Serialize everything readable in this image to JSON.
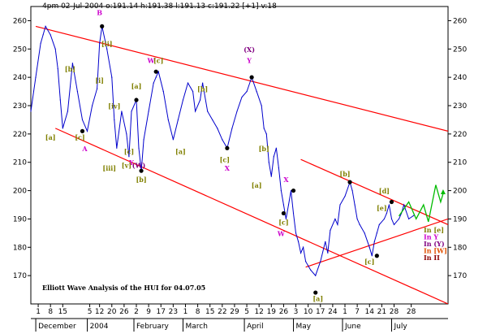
{
  "header": "4pm 02-Jul-2004  o:191.14 h:191.38 l:191.13 c:191.22 [+1] v:18",
  "colors": {
    "price": "#0000cc",
    "trend": "#ff0000",
    "green": "#00bb00",
    "pivot": "#000000",
    "olive": "#808000",
    "magenta": "#cc00cc",
    "purple": "#800080",
    "orange": "#e05000",
    "darkred": "#8b0000"
  },
  "chart_data": {
    "type": "line",
    "title": "Elliott Wave Analysis of the HUI for 04.07.05",
    "ylim": [
      160,
      265
    ],
    "yticks": [
      170,
      180,
      190,
      200,
      210,
      220,
      230,
      240,
      250,
      260
    ],
    "grid": false,
    "xlim": [
      0,
      170
    ],
    "day_ticks": [
      {
        "x": 3,
        "label": "1"
      },
      {
        "x": 8,
        "label": "8"
      },
      {
        "x": 13,
        "label": "15"
      },
      {
        "x": 24,
        "label": "5"
      },
      {
        "x": 28,
        "label": "12"
      },
      {
        "x": 33,
        "label": "20"
      },
      {
        "x": 38,
        "label": "26"
      },
      {
        "x": 43,
        "label": "2"
      },
      {
        "x": 48,
        "label": "9"
      },
      {
        "x": 53,
        "label": "17"
      },
      {
        "x": 58,
        "label": "23"
      },
      {
        "x": 63,
        "label": "1"
      },
      {
        "x": 68,
        "label": "8"
      },
      {
        "x": 73,
        "label": "15"
      },
      {
        "x": 78,
        "label": "22"
      },
      {
        "x": 83,
        "label": "29"
      },
      {
        "x": 88,
        "label": "5"
      },
      {
        "x": 93,
        "label": "12"
      },
      {
        "x": 98,
        "label": "19"
      },
      {
        "x": 103,
        "label": "26"
      },
      {
        "x": 108,
        "label": "3"
      },
      {
        "x": 113,
        "label": "10"
      },
      {
        "x": 118,
        "label": "17"
      },
      {
        "x": 123,
        "label": "24"
      },
      {
        "x": 128,
        "label": "1"
      },
      {
        "x": 133,
        "label": "7"
      },
      {
        "x": 138,
        "label": "14"
      },
      {
        "x": 143,
        "label": "21"
      },
      {
        "x": 148,
        "label": "28"
      },
      {
        "x": 155,
        "label": "28"
      }
    ],
    "month_ticks": [
      {
        "x": 3,
        "label": "December"
      },
      {
        "x": 24,
        "label": "2004"
      },
      {
        "x": 43,
        "label": "February"
      },
      {
        "x": 63,
        "label": "March"
      },
      {
        "x": 88,
        "label": "April"
      },
      {
        "x": 108,
        "label": "May"
      },
      {
        "x": 128,
        "label": "June"
      },
      {
        "x": 148,
        "label": "July"
      }
    ],
    "series": [
      {
        "x": [
          0,
          2,
          4,
          5,
          6,
          8,
          10,
          11,
          12,
          13,
          15,
          17,
          19,
          21,
          23,
          25,
          27,
          28,
          29,
          31,
          33,
          34,
          35,
          37,
          39,
          40,
          41,
          43,
          44,
          45,
          46,
          48,
          50,
          51,
          52,
          54,
          56,
          58,
          60,
          62,
          64,
          66,
          67,
          69,
          70,
          72,
          74,
          76,
          78,
          80,
          82,
          84,
          86,
          88,
          90,
          92,
          94,
          95,
          96,
          97,
          98,
          99,
          100,
          101,
          102,
          103,
          104,
          105,
          106,
          107,
          108,
          109,
          110,
          111,
          112,
          114,
          116,
          118,
          120,
          121,
          122,
          124,
          125,
          126,
          128,
          130,
          131,
          132,
          133,
          134,
          136,
          138,
          139,
          140,
          141,
          142,
          144,
          145,
          146,
          147,
          148,
          150,
          151,
          152,
          154,
          156
        ],
        "y": [
          228,
          240,
          252,
          255,
          258,
          255,
          250,
          243,
          232,
          222,
          228,
          245,
          235,
          225,
          221,
          230,
          236,
          252,
          258,
          250,
          240,
          225,
          215,
          228,
          220,
          212,
          228,
          232,
          215,
          207,
          218,
          228,
          238,
          240,
          242,
          235,
          225,
          218,
          225,
          232,
          238,
          235,
          228,
          232,
          238,
          228,
          225,
          222,
          218,
          215,
          222,
          228,
          233,
          235,
          240,
          235,
          230,
          222,
          220,
          210,
          205,
          212,
          215,
          208,
          200,
          195,
          190,
          195,
          200,
          192,
          185,
          182,
          178,
          180,
          175,
          172,
          170,
          175,
          182,
          178,
          186,
          190,
          188,
          195,
          198,
          203,
          200,
          195,
          190,
          188,
          185,
          180,
          177,
          182,
          185,
          188,
          190,
          192,
          195,
          190,
          188,
          190,
          192,
          195,
          190,
          191.22
        ]
      }
    ],
    "trendlines": [
      {
        "x1": 2,
        "y1": 258,
        "x2": 170,
        "y2": 221
      },
      {
        "x1": 10,
        "y1": 222,
        "x2": 170,
        "y2": 160
      },
      {
        "x1": 110,
        "y1": 211,
        "x2": 170,
        "y2": 188
      },
      {
        "x1": 112,
        "y1": 173,
        "x2": 170,
        "y2": 190
      }
    ],
    "green_projection": [
      {
        "x": 150,
        "y": 191
      },
      {
        "x": 154,
        "y": 196
      },
      {
        "x": 157,
        "y": 190
      },
      {
        "x": 160,
        "y": 195
      },
      {
        "x": 162,
        "y": 189
      },
      {
        "x": 165,
        "y": 202
      },
      {
        "x": 167,
        "y": 196
      },
      {
        "x": 168,
        "y": 199
      }
    ],
    "pivots": [
      {
        "x": 29,
        "y": 258
      },
      {
        "x": 21,
        "y": 221
      },
      {
        "x": 45,
        "y": 207
      },
      {
        "x": 51,
        "y": 242
      },
      {
        "x": 43,
        "y": 232
      },
      {
        "x": 80,
        "y": 215
      },
      {
        "x": 90,
        "y": 240
      },
      {
        "x": 103,
        "y": 192
      },
      {
        "x": 107,
        "y": 200
      },
      {
        "x": 116,
        "y": 164
      },
      {
        "x": 130,
        "y": 203
      },
      {
        "x": 141,
        "y": 177
      },
      {
        "x": 147,
        "y": 196
      }
    ],
    "wave_labels": [
      {
        "x": 28,
        "y": 262,
        "text": "B",
        "color": "magenta"
      },
      {
        "x": 31,
        "y": 251,
        "text": "[ii]",
        "color": "olive"
      },
      {
        "x": 16,
        "y": 242,
        "text": "[b]",
        "color": "olive"
      },
      {
        "x": 28,
        "y": 238,
        "text": "[i]",
        "color": "olive"
      },
      {
        "x": 8,
        "y": 218,
        "text": "[a]",
        "color": "olive"
      },
      {
        "x": 20,
        "y": 218,
        "text": "[c]",
        "color": "olive"
      },
      {
        "x": 22,
        "y": 214,
        "text": "A",
        "color": "magenta"
      },
      {
        "x": 34,
        "y": 229,
        "text": "[iv]",
        "color": "olive"
      },
      {
        "x": 43,
        "y": 236,
        "text": "[a]",
        "color": "olive"
      },
      {
        "x": 32,
        "y": 207,
        "text": "[iii]",
        "color": "olive"
      },
      {
        "x": 40,
        "y": 213,
        "text": "[c]",
        "color": "olive"
      },
      {
        "x": 41,
        "y": 209,
        "text": "Y",
        "color": "magenta"
      },
      {
        "x": 39,
        "y": 208,
        "text": "[v]",
        "color": "olive"
      },
      {
        "x": 44,
        "y": 208,
        "text": "(W)",
        "color": "purple"
      },
      {
        "x": 45,
        "y": 203,
        "text": "[b]",
        "color": "olive"
      },
      {
        "x": 49,
        "y": 245,
        "text": "W",
        "color": "magenta"
      },
      {
        "x": 52,
        "y": 245,
        "text": "[c]",
        "color": "olive"
      },
      {
        "x": 61,
        "y": 213,
        "text": "[a]",
        "color": "olive"
      },
      {
        "x": 70,
        "y": 235,
        "text": "[b]",
        "color": "olive"
      },
      {
        "x": 79,
        "y": 210,
        "text": "[c]",
        "color": "olive"
      },
      {
        "x": 80,
        "y": 207,
        "text": "X",
        "color": "magenta"
      },
      {
        "x": 89,
        "y": 249,
        "text": "(X)",
        "color": "purple"
      },
      {
        "x": 89,
        "y": 245,
        "text": "Y",
        "color": "magenta"
      },
      {
        "x": 95,
        "y": 214,
        "text": "[b]",
        "color": "olive"
      },
      {
        "x": 92,
        "y": 201,
        "text": "[a]",
        "color": "olive"
      },
      {
        "x": 103,
        "y": 188,
        "text": "[c]",
        "color": "olive"
      },
      {
        "x": 102,
        "y": 184,
        "text": "W",
        "color": "magenta"
      },
      {
        "x": 104,
        "y": 203,
        "text": "X",
        "color": "magenta"
      },
      {
        "x": 117,
        "y": 161,
        "text": "[a]",
        "color": "olive"
      },
      {
        "x": 128,
        "y": 205,
        "text": "[b]",
        "color": "olive"
      },
      {
        "x": 138,
        "y": 174,
        "text": "[c]",
        "color": "olive"
      },
      {
        "x": 144,
        "y": 199,
        "text": "[d]",
        "color": "olive"
      },
      {
        "x": 143,
        "y": 193,
        "text": "[e]",
        "color": "olive"
      }
    ],
    "legend": {
      "placement": "right",
      "entries": [
        {
          "text": "In [e]",
          "color": "olive"
        },
        {
          "text": "In Y",
          "color": "magenta"
        },
        {
          "text": "In (Y)",
          "color": "purple"
        },
        {
          "text": "In [W]",
          "color": "orange"
        },
        {
          "text": "In II",
          "color": "darkred"
        }
      ]
    }
  }
}
